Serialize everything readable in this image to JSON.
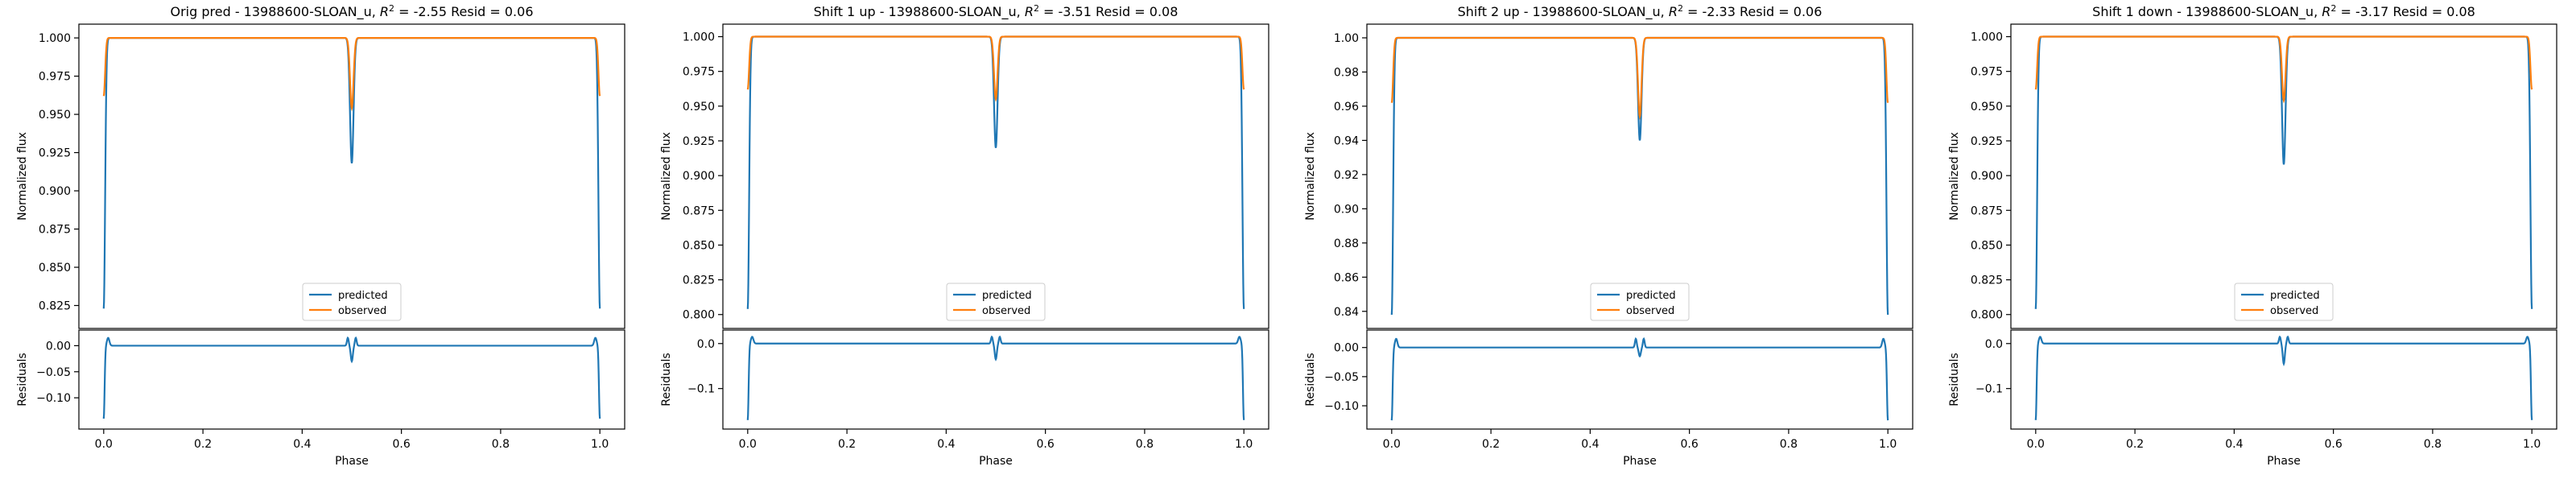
{
  "figure": {
    "colors": {
      "predicted": "#1f77b4",
      "observed": "#ff7f0e",
      "axes": "#000000",
      "background": "#ffffff"
    }
  },
  "chart_data": [
    {
      "type": "line",
      "title_prefix": "Orig pred - 13988600-SLOAN_u, ",
      "title_r2": "-2.55",
      "title_suffix": " Resid = 0.06",
      "ylabel": "Normalized flux",
      "xlabel": "Phase",
      "resid_ylabel": "Residuals",
      "legend": [
        "predicted",
        "observed"
      ],
      "legend_position": "lower center",
      "xlim": [
        -0.05,
        1.05
      ],
      "ylim": [
        0.81,
        1.009
      ],
      "yticks": [
        0.825,
        0.85,
        0.875,
        0.9,
        0.925,
        0.95,
        0.975,
        1.0
      ],
      "ytick_labels": [
        "0.825",
        "0.850",
        "0.875",
        "0.900",
        "0.925",
        "0.950",
        "0.975",
        "1.000"
      ],
      "xticks": [
        0.0,
        0.2,
        0.4,
        0.6,
        0.8,
        1.0
      ],
      "xtick_labels": [
        "0.0",
        "0.2",
        "0.4",
        "0.6",
        "0.8",
        "1.0"
      ],
      "resid_ylim": [
        -0.16,
        0.03
      ],
      "resid_yticks": [
        0.0,
        -0.05,
        -0.1
      ],
      "resid_ytick_labels": [
        "0.00",
        "−0.05",
        "−0.10"
      ],
      "series": [
        {
          "name": "predicted",
          "baseline": 1.0,
          "edge_min": 0.823,
          "dip_min": 0.918
        },
        {
          "name": "observed",
          "baseline": 1.0,
          "edge_min": 0.962,
          "dip_min": 0.954
        }
      ],
      "residuals": {
        "edge_min": -0.14,
        "edge_max": 0.015,
        "dip_min": -0.03,
        "dip_max": 0.015
      }
    },
    {
      "type": "line",
      "title_prefix": "Shift 1 up - 13988600-SLOAN_u, ",
      "title_r2": "-3.51",
      "title_suffix": " Resid = 0.08",
      "ylabel": "Normalized flux",
      "xlabel": "Phase",
      "resid_ylabel": "Residuals",
      "legend": [
        "predicted",
        "observed"
      ],
      "legend_position": "lower center",
      "xlim": [
        -0.05,
        1.05
      ],
      "ylim": [
        0.79,
        1.009
      ],
      "yticks": [
        0.8,
        0.825,
        0.85,
        0.875,
        0.9,
        0.925,
        0.95,
        0.975,
        1.0
      ],
      "ytick_labels": [
        "0.800",
        "0.825",
        "0.850",
        "0.875",
        "0.900",
        "0.925",
        "0.950",
        "0.975",
        "1.000"
      ],
      "xticks": [
        0.0,
        0.2,
        0.4,
        0.6,
        0.8,
        1.0
      ],
      "xtick_labels": [
        "0.0",
        "0.2",
        "0.4",
        "0.6",
        "0.8",
        "1.0"
      ],
      "resid_ylim": [
        -0.19,
        0.03
      ],
      "resid_yticks": [
        0.0,
        -0.1
      ],
      "resid_ytick_labels": [
        "0.0",
        "−0.1"
      ],
      "series": [
        {
          "name": "predicted",
          "baseline": 1.0,
          "edge_min": 0.804,
          "dip_min": 0.92
        },
        {
          "name": "observed",
          "baseline": 1.0,
          "edge_min": 0.962,
          "dip_min": 0.955
        }
      ],
      "residuals": {
        "edge_min": -0.17,
        "edge_max": 0.015,
        "dip_min": -0.035,
        "dip_max": 0.015
      }
    },
    {
      "type": "line",
      "title_prefix": "Shift 2 up - 13988600-SLOAN_u, ",
      "title_r2": "-2.33",
      "title_suffix": " Resid = 0.06",
      "ylabel": "Normalized flux",
      "xlabel": "Phase",
      "resid_ylabel": "Residuals",
      "legend": [
        "predicted",
        "observed"
      ],
      "legend_position": "lower center",
      "xlim": [
        -0.05,
        1.05
      ],
      "ylim": [
        0.83,
        1.008
      ],
      "yticks": [
        0.84,
        0.86,
        0.88,
        0.9,
        0.92,
        0.94,
        0.96,
        0.98,
        1.0
      ],
      "ytick_labels": [
        "0.84",
        "0.86",
        "0.88",
        "0.90",
        "0.92",
        "0.94",
        "0.96",
        "0.98",
        "1.00"
      ],
      "xticks": [
        0.0,
        0.2,
        0.4,
        0.6,
        0.8,
        1.0
      ],
      "xtick_labels": [
        "0.0",
        "0.2",
        "0.4",
        "0.6",
        "0.8",
        "1.0"
      ],
      "resid_ylim": [
        -0.14,
        0.03
      ],
      "resid_yticks": [
        0.0,
        -0.05,
        -0.1
      ],
      "resid_ytick_labels": [
        "0.00",
        "−0.05",
        "−0.10"
      ],
      "series": [
        {
          "name": "predicted",
          "baseline": 1.0,
          "edge_min": 0.838,
          "dip_min": 0.94
        },
        {
          "name": "observed",
          "baseline": 1.0,
          "edge_min": 0.962,
          "dip_min": 0.954
        }
      ],
      "residuals": {
        "edge_min": -0.125,
        "edge_max": 0.015,
        "dip_min": -0.015,
        "dip_max": 0.015
      }
    },
    {
      "type": "line",
      "title_prefix": "Shift 1 down - 13988600-SLOAN_u, ",
      "title_r2": "-3.17",
      "title_suffix": " Resid = 0.08",
      "ylabel": "Normalized flux",
      "xlabel": "Phase",
      "resid_ylabel": "Residuals",
      "legend": [
        "predicted",
        "observed"
      ],
      "legend_position": "lower center",
      "xlim": [
        -0.05,
        1.05
      ],
      "ylim": [
        0.79,
        1.009
      ],
      "yticks": [
        0.8,
        0.825,
        0.85,
        0.875,
        0.9,
        0.925,
        0.95,
        0.975,
        1.0
      ],
      "ytick_labels": [
        "0.800",
        "0.825",
        "0.850",
        "0.875",
        "0.900",
        "0.925",
        "0.950",
        "0.975",
        "1.000"
      ],
      "xticks": [
        0.0,
        0.2,
        0.4,
        0.6,
        0.8,
        1.0
      ],
      "xtick_labels": [
        "0.0",
        "0.2",
        "0.4",
        "0.6",
        "0.8",
        "1.0"
      ],
      "resid_ylim": [
        -0.19,
        0.03
      ],
      "resid_yticks": [
        0.0,
        -0.1
      ],
      "resid_ytick_labels": [
        "0.0",
        "−0.1"
      ],
      "series": [
        {
          "name": "predicted",
          "baseline": 1.0,
          "edge_min": 0.804,
          "dip_min": 0.908
        },
        {
          "name": "observed",
          "baseline": 1.0,
          "edge_min": 0.962,
          "dip_min": 0.954
        }
      ],
      "residuals": {
        "edge_min": -0.17,
        "edge_max": 0.015,
        "dip_min": -0.045,
        "dip_max": 0.015
      }
    }
  ]
}
